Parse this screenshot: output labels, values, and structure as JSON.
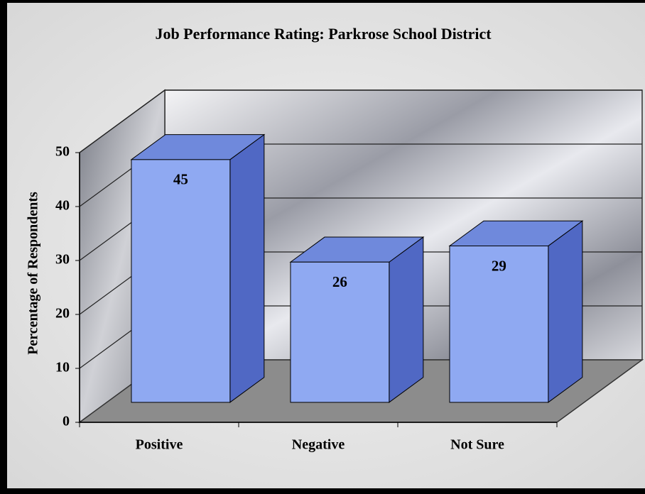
{
  "chart_data": {
    "type": "bar3d",
    "title": "Job Performance Rating: Parkrose School District",
    "y_label": "Percentage of Respondents",
    "categories": [
      "Positive",
      "Negative",
      "Not Sure"
    ],
    "values": [
      45,
      26,
      29
    ],
    "color": "#8fa9f2",
    "ylim": [
      0,
      50
    ],
    "yticks": [
      0,
      10,
      20,
      30,
      40,
      50
    ],
    "grid": true
  }
}
